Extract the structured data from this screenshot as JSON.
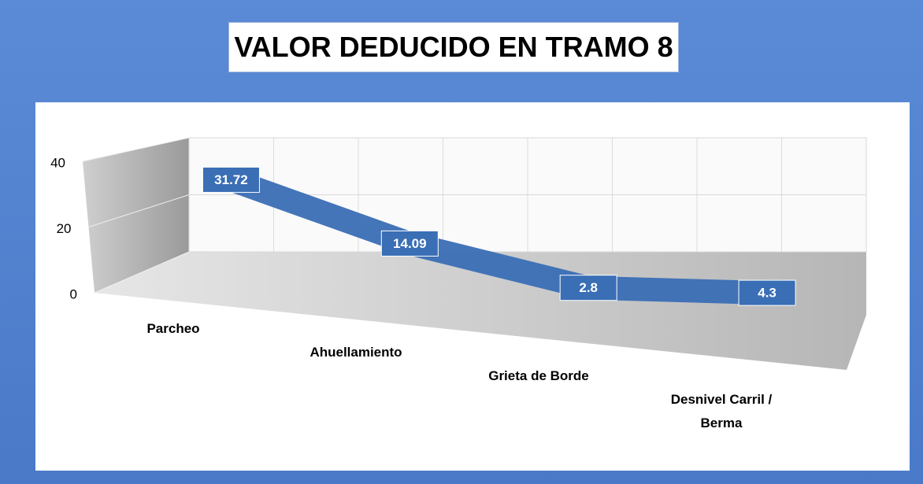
{
  "chart_data": {
    "type": "line3d",
    "title": "VALOR DEDUCIDO EN TRAMO 8",
    "categories": [
      "Parcheo",
      "Ahuellamiento",
      "Grieta de Borde",
      "Desnivel Carril / Berma"
    ],
    "values": [
      31.72,
      14.09,
      2.8,
      4.3
    ],
    "color": "#3a6eb5",
    "ylim": [
      0,
      40
    ],
    "yticks": [
      0,
      20,
      40
    ],
    "grid": true
  }
}
